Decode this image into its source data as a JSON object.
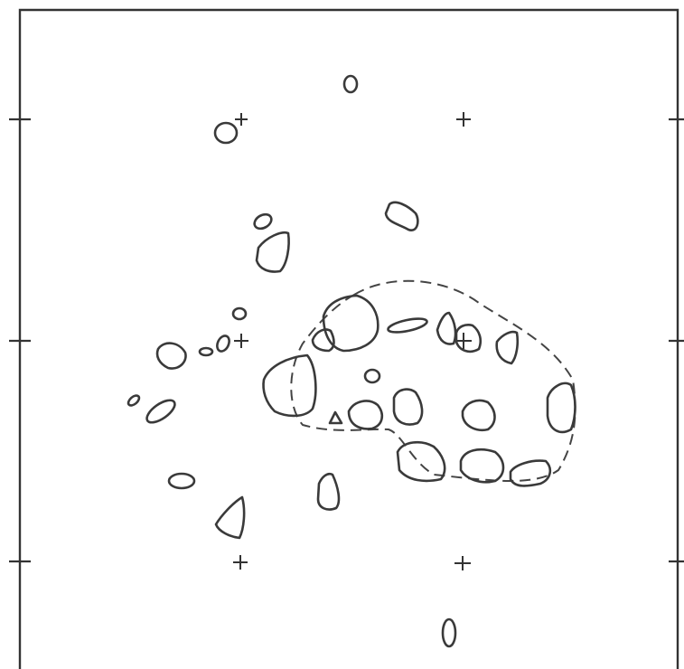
{
  "figure": {
    "kind": "contour-map",
    "title": "",
    "frame_color": "#333333",
    "contour_color": "#3a3a3a",
    "background": "#ffffff",
    "grid_markers": "plus-crosses",
    "frame_ticks": "left-and-right",
    "envelope_style": "dashed",
    "contours": "solid"
  }
}
